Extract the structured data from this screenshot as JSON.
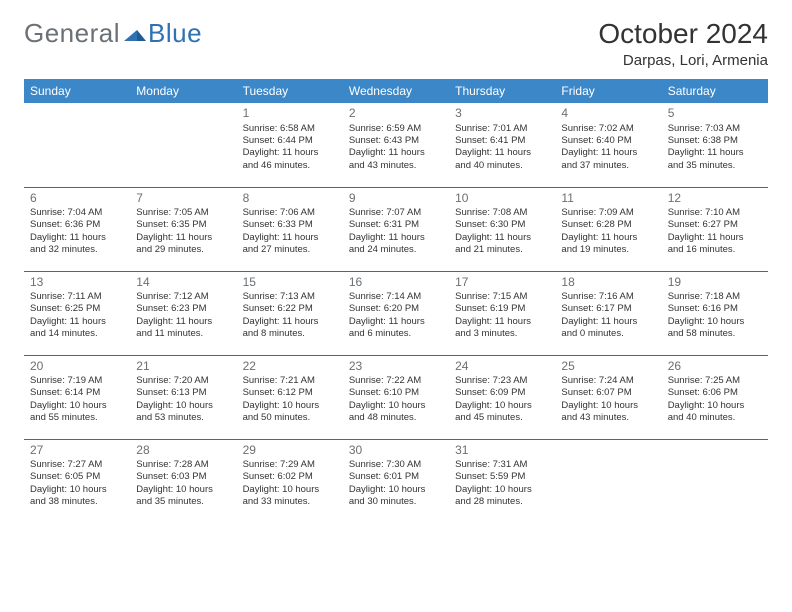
{
  "logo": {
    "text1": "General",
    "text2": "Blue"
  },
  "title": "October 2024",
  "location": "Darpas, Lori, Armenia",
  "colors": {
    "header_bg": "#3b87c8",
    "header_text": "#ffffff",
    "row_border": "#2f6fa8",
    "daynum": "#6a6f73",
    "body_text": "#333333",
    "logo_gray": "#6a7075",
    "logo_blue": "#2f71b3"
  },
  "weekdays": [
    "Sunday",
    "Monday",
    "Tuesday",
    "Wednesday",
    "Thursday",
    "Friday",
    "Saturday"
  ],
  "weeks": [
    [
      null,
      null,
      {
        "n": "1",
        "sr": "6:58 AM",
        "ss": "6:44 PM",
        "dl": "11 hours and 46 minutes."
      },
      {
        "n": "2",
        "sr": "6:59 AM",
        "ss": "6:43 PM",
        "dl": "11 hours and 43 minutes."
      },
      {
        "n": "3",
        "sr": "7:01 AM",
        "ss": "6:41 PM",
        "dl": "11 hours and 40 minutes."
      },
      {
        "n": "4",
        "sr": "7:02 AM",
        "ss": "6:40 PM",
        "dl": "11 hours and 37 minutes."
      },
      {
        "n": "5",
        "sr": "7:03 AM",
        "ss": "6:38 PM",
        "dl": "11 hours and 35 minutes."
      }
    ],
    [
      {
        "n": "6",
        "sr": "7:04 AM",
        "ss": "6:36 PM",
        "dl": "11 hours and 32 minutes."
      },
      {
        "n": "7",
        "sr": "7:05 AM",
        "ss": "6:35 PM",
        "dl": "11 hours and 29 minutes."
      },
      {
        "n": "8",
        "sr": "7:06 AM",
        "ss": "6:33 PM",
        "dl": "11 hours and 27 minutes."
      },
      {
        "n": "9",
        "sr": "7:07 AM",
        "ss": "6:31 PM",
        "dl": "11 hours and 24 minutes."
      },
      {
        "n": "10",
        "sr": "7:08 AM",
        "ss": "6:30 PM",
        "dl": "11 hours and 21 minutes."
      },
      {
        "n": "11",
        "sr": "7:09 AM",
        "ss": "6:28 PM",
        "dl": "11 hours and 19 minutes."
      },
      {
        "n": "12",
        "sr": "7:10 AM",
        "ss": "6:27 PM",
        "dl": "11 hours and 16 minutes."
      }
    ],
    [
      {
        "n": "13",
        "sr": "7:11 AM",
        "ss": "6:25 PM",
        "dl": "11 hours and 14 minutes."
      },
      {
        "n": "14",
        "sr": "7:12 AM",
        "ss": "6:23 PM",
        "dl": "11 hours and 11 minutes."
      },
      {
        "n": "15",
        "sr": "7:13 AM",
        "ss": "6:22 PM",
        "dl": "11 hours and 8 minutes."
      },
      {
        "n": "16",
        "sr": "7:14 AM",
        "ss": "6:20 PM",
        "dl": "11 hours and 6 minutes."
      },
      {
        "n": "17",
        "sr": "7:15 AM",
        "ss": "6:19 PM",
        "dl": "11 hours and 3 minutes."
      },
      {
        "n": "18",
        "sr": "7:16 AM",
        "ss": "6:17 PM",
        "dl": "11 hours and 0 minutes."
      },
      {
        "n": "19",
        "sr": "7:18 AM",
        "ss": "6:16 PM",
        "dl": "10 hours and 58 minutes."
      }
    ],
    [
      {
        "n": "20",
        "sr": "7:19 AM",
        "ss": "6:14 PM",
        "dl": "10 hours and 55 minutes."
      },
      {
        "n": "21",
        "sr": "7:20 AM",
        "ss": "6:13 PM",
        "dl": "10 hours and 53 minutes."
      },
      {
        "n": "22",
        "sr": "7:21 AM",
        "ss": "6:12 PM",
        "dl": "10 hours and 50 minutes."
      },
      {
        "n": "23",
        "sr": "7:22 AM",
        "ss": "6:10 PM",
        "dl": "10 hours and 48 minutes."
      },
      {
        "n": "24",
        "sr": "7:23 AM",
        "ss": "6:09 PM",
        "dl": "10 hours and 45 minutes."
      },
      {
        "n": "25",
        "sr": "7:24 AM",
        "ss": "6:07 PM",
        "dl": "10 hours and 43 minutes."
      },
      {
        "n": "26",
        "sr": "7:25 AM",
        "ss": "6:06 PM",
        "dl": "10 hours and 40 minutes."
      }
    ],
    [
      {
        "n": "27",
        "sr": "7:27 AM",
        "ss": "6:05 PM",
        "dl": "10 hours and 38 minutes."
      },
      {
        "n": "28",
        "sr": "7:28 AM",
        "ss": "6:03 PM",
        "dl": "10 hours and 35 minutes."
      },
      {
        "n": "29",
        "sr": "7:29 AM",
        "ss": "6:02 PM",
        "dl": "10 hours and 33 minutes."
      },
      {
        "n": "30",
        "sr": "7:30 AM",
        "ss": "6:01 PM",
        "dl": "10 hours and 30 minutes."
      },
      {
        "n": "31",
        "sr": "7:31 AM",
        "ss": "5:59 PM",
        "dl": "10 hours and 28 minutes."
      },
      null,
      null
    ]
  ],
  "labels": {
    "sunrise": "Sunrise: ",
    "sunset": "Sunset: ",
    "daylight": "Daylight: "
  }
}
